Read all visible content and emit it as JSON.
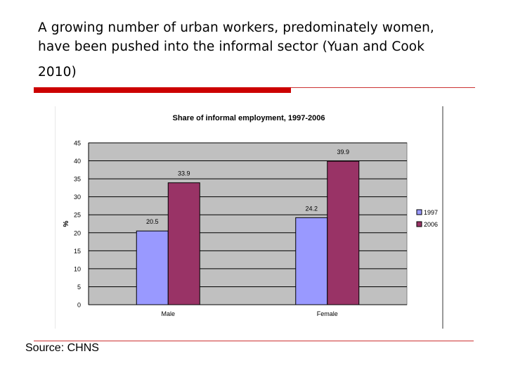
{
  "slide": {
    "title_line1": "A growing number of urban workers, predominately women,",
    "title_line2": "have been pushed into the informal sector (Yuan and Cook",
    "title_line3": "2010)",
    "source": "Source: CHNS"
  },
  "colors": {
    "accent_rule": "#cc0000",
    "series_1997": "#9999ff",
    "series_2006": "#993366",
    "plot_background": "#c0c0c0"
  },
  "chart_data": {
    "type": "bar",
    "title": "Share of informal employment, 1997-2006",
    "ylabel": "%",
    "xlabel": "",
    "categories": [
      "Male",
      "Female"
    ],
    "series": [
      {
        "name": "1997",
        "values": [
          20.5,
          24.2
        ],
        "labels": [
          "20.5",
          "24.2"
        ]
      },
      {
        "name": "2006",
        "values": [
          33.9,
          39.9
        ],
        "labels": [
          "33.9",
          "39.9"
        ]
      }
    ],
    "ylim": [
      0,
      45
    ],
    "yticks": [
      0,
      5,
      10,
      15,
      20,
      25,
      30,
      35,
      40,
      45
    ],
    "grid": "horizontal",
    "legend": "right"
  }
}
